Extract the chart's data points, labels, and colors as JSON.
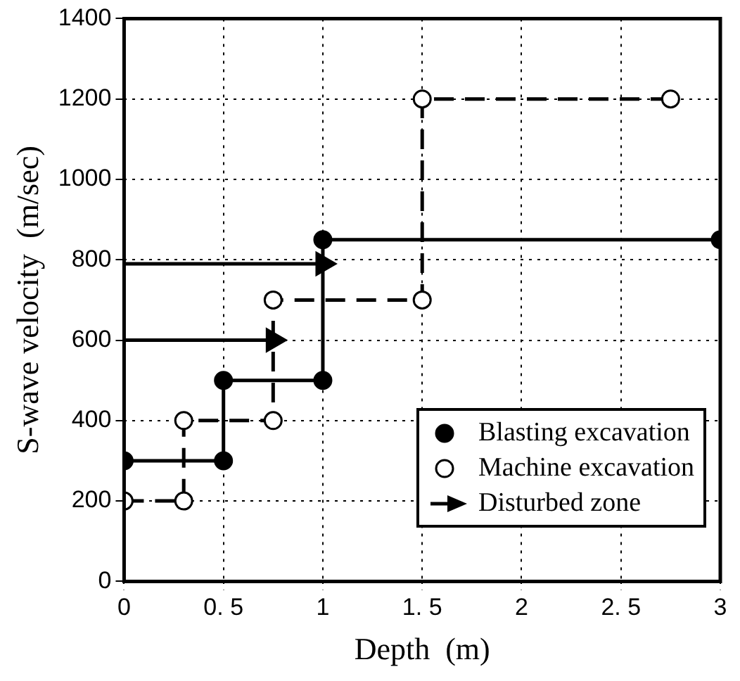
{
  "chart_data": {
    "type": "line",
    "xlabel": "Depth  (m)",
    "ylabel": "S-wave velocity  (m/sec)",
    "xlim": [
      0,
      3
    ],
    "xticks": [
      0,
      {
        "value": 0.5,
        "label": "0. 5"
      },
      1,
      {
        "value": 1.5,
        "label": "1. 5"
      },
      2,
      {
        "value": 2.5,
        "label": "2. 5"
      },
      3
    ],
    "ylim": [
      0,
      1400
    ],
    "yticks": [
      0,
      200,
      400,
      600,
      800,
      1000,
      1200,
      1400
    ],
    "grid": true,
    "legend": "bottom right",
    "series": [
      {
        "name": "Blasting excavation",
        "color": "#000000",
        "marker": "circle",
        "line_style": "solid",
        "x": [
          0,
          0.5,
          0.5,
          1,
          1,
          3
        ],
        "values": [
          300,
          300,
          500,
          500,
          850,
          850
        ]
      },
      {
        "name": "Machine excavation",
        "color": "#000000",
        "marker": "circle",
        "line_style": "dashed",
        "x": [
          0,
          0.3,
          0.3,
          0.75,
          0.75,
          1.5,
          1.5,
          2.75
        ],
        "values": [
          200,
          200,
          400,
          400,
          700,
          700,
          1200,
          1200
        ]
      },
      {
        "name": "Disturbed zone",
        "color": "#000000",
        "marker": "triangle",
        "line_style": "solid",
        "x": [
          0,
          0.75,
          null,
          0,
          1
        ],
        "values": [
          600,
          600,
          null,
          790,
          790
        ]
      }
    ]
  }
}
